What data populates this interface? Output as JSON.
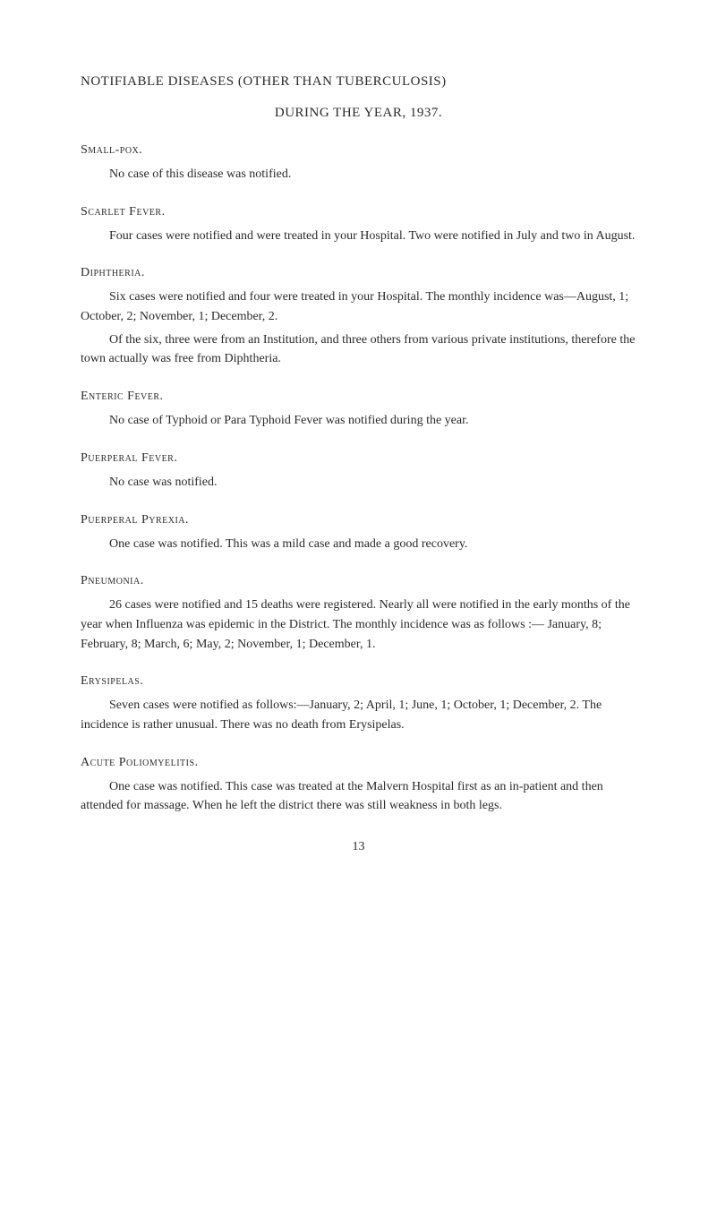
{
  "title": {
    "line1": "NOTIFIABLE DISEASES (OTHER THAN TUBERCULOSIS)",
    "line2": "DURING THE YEAR, 1937."
  },
  "sections": {
    "smallpox": {
      "header": "Small-pox.",
      "body": "No case of this disease was notified."
    },
    "scarletFever": {
      "header": "Scarlet Fever.",
      "body": "Four cases were notified and were treated in your Hospital. Two were notified in July and two in August."
    },
    "diphtheria": {
      "header": "Diphtheria.",
      "body1": "Six cases were notified and four were treated in your Hospital. The monthly incidence was—August, 1; October, 2; November, 1; December, 2.",
      "body2": "Of the six, three were from an Institution, and three others from various private institutions, therefore the town actually was free from Diphtheria."
    },
    "entericFever": {
      "header": "Enteric Fever.",
      "body": "No case of Typhoid or Para Typhoid Fever was notified during the year."
    },
    "puerperalFever": {
      "header": "Puerperal Fever.",
      "body": "No case was notified."
    },
    "puerperalPyrexia": {
      "header": "Puerperal Pyrexia.",
      "body": "One case was notified. This was a mild case and made a good recovery."
    },
    "pneumonia": {
      "header": "Pneumonia.",
      "body": "26 cases were notified and 15 deaths were registered. Nearly all were notified in the early months of the year when Influenza was epidemic in the District. The monthly incidence was as follows :— January, 8; February, 8; March, 6; May, 2; November, 1; December, 1."
    },
    "erysipelas": {
      "header": "Erysipelas.",
      "body": "Seven cases were notified as follows:—January, 2; April, 1; June, 1; October, 1; December, 2. The incidence is rather unusual. There was no death from Erysipelas."
    },
    "acutePoliomyelitis": {
      "header": "Acute Poliomyelitis.",
      "body": "One case was notified. This case was treated at the Malvern Hospital first as an in-patient and then attended for massage. When he left the district there was still weakness in both legs."
    }
  },
  "pageNumber": "13"
}
